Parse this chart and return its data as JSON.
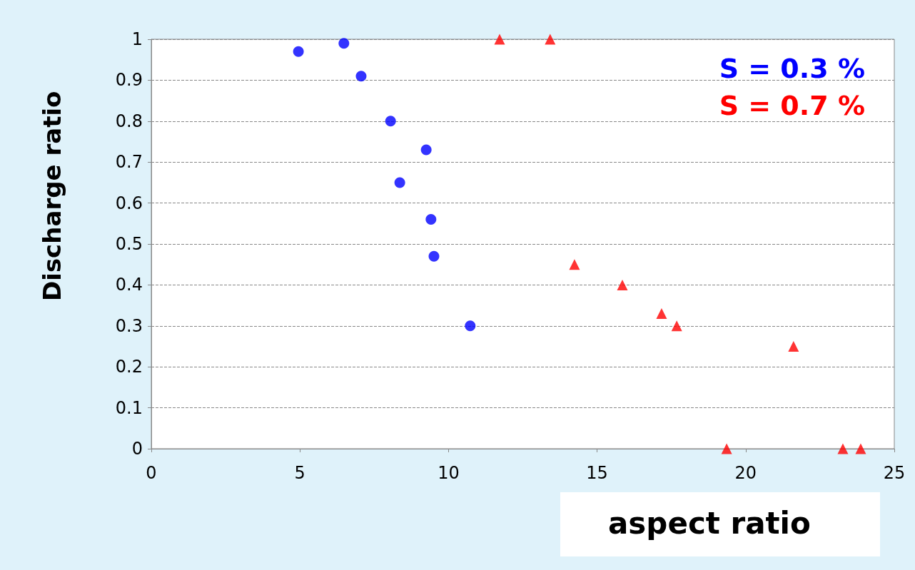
{
  "chart_data": {
    "type": "scatter",
    "xlabel": "aspect ratio",
    "ylabel": "Discharge ratio",
    "xlim": [
      0,
      25
    ],
    "xticks": [
      0,
      5,
      10,
      15,
      20,
      25
    ],
    "ylim": [
      0,
      1
    ],
    "yticks": [
      0,
      0.1,
      0.2,
      0.3,
      0.4,
      0.5,
      0.6,
      0.7,
      0.8,
      0.9,
      1
    ],
    "grid": "y",
    "legend": "top right",
    "series": [
      {
        "name": "S = 0.3 %",
        "color": "#0000ff",
        "marker": "circle",
        "x": [
          4.95,
          6.48,
          7.06,
          8.05,
          9.25,
          8.36,
          9.41,
          9.51,
          10.73
        ],
        "values": [
          0.97,
          0.99,
          0.91,
          0.8,
          0.73,
          0.65,
          0.56,
          0.47,
          0.3
        ]
      },
      {
        "name": "S = 0.7 %",
        "color": "#ff0000",
        "marker": "triangle",
        "x": [
          11.72,
          13.42,
          14.24,
          15.85,
          17.17,
          17.68,
          21.61,
          19.36,
          23.27,
          23.87
        ],
        "values": [
          1,
          1,
          0.45,
          0.4,
          0.33,
          0.3,
          0.25,
          0,
          0,
          0
        ]
      }
    ]
  }
}
